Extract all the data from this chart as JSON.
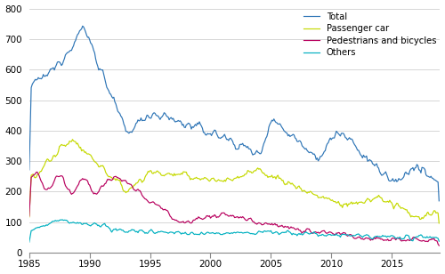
{
  "title": "",
  "xlabel": "",
  "ylabel": "",
  "xlim": [
    1985.0,
    2019.0
  ],
  "ylim": [
    0,
    800
  ],
  "yticks": [
    0,
    100,
    200,
    300,
    400,
    500,
    600,
    700,
    800
  ],
  "xticks": [
    1985,
    1990,
    1995,
    2000,
    2005,
    2010,
    2015
  ],
  "colors": {
    "total": "#2e75b6",
    "passenger": "#c5d900",
    "pedestrians": "#b8005e",
    "others": "#00b0c0"
  },
  "legend_labels": [
    "Total",
    "Passenger car",
    "Pedestrians and bicycles",
    "Others"
  ],
  "background_color": "#ffffff",
  "grid_color": "#d0d0d0"
}
